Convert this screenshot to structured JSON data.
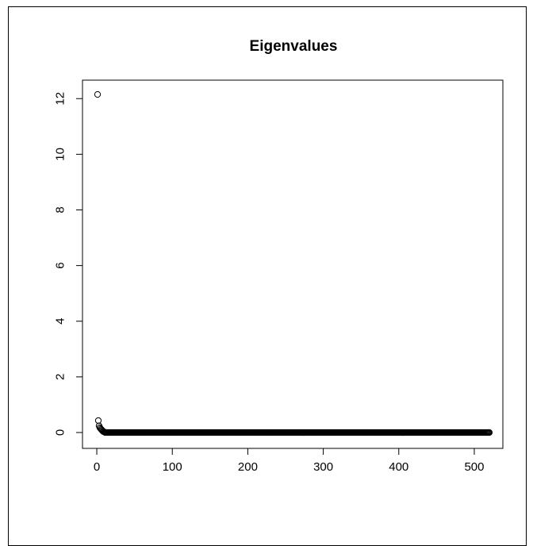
{
  "chart_data": {
    "type": "scatter",
    "title": "Eigenvalues",
    "xlabel": "",
    "ylabel": "",
    "xlim": [
      1,
      520
    ],
    "ylim": [
      0,
      12.2
    ],
    "x_ticks": [
      0,
      100,
      200,
      300,
      400,
      500
    ],
    "y_ticks": [
      0,
      2,
      4,
      6,
      8,
      10,
      12
    ],
    "grid": false,
    "marker": "open-circle",
    "n_points": 520,
    "points": [
      {
        "x": 1,
        "y": 12.15
      },
      {
        "x": 2,
        "y": 0.43
      },
      {
        "x": 3,
        "y": 0.24
      },
      {
        "x": 4,
        "y": 0.18
      },
      {
        "x": 5,
        "y": 0.14
      },
      {
        "x": 6,
        "y": 0.11
      },
      {
        "x": 7,
        "y": 0.08
      },
      {
        "x": 8,
        "y": 0.05
      },
      {
        "x": 9,
        "y": 0.03
      },
      {
        "x": 10,
        "y": 0.02
      }
    ],
    "tail": {
      "x_from": 11,
      "x_to": 520,
      "y": 0.0
    }
  },
  "colors": {
    "point_stroke": "#000000",
    "axis": "#000000",
    "background": "#ffffff"
  }
}
